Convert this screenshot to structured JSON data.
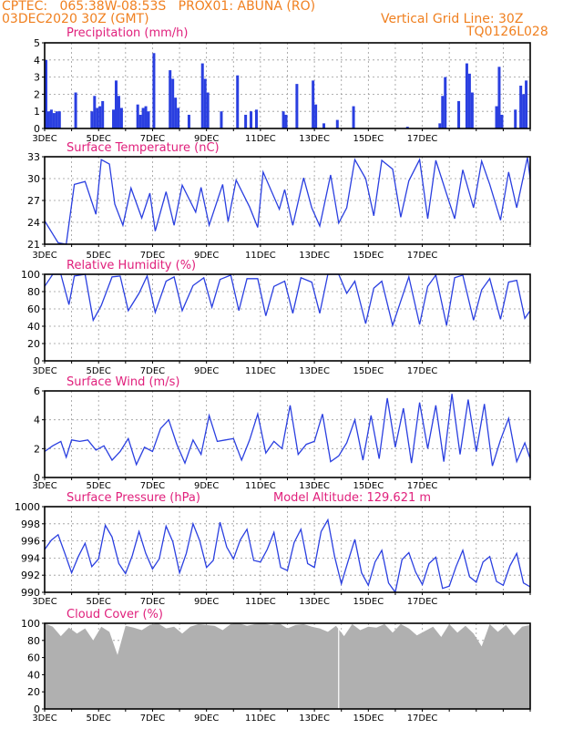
{
  "header": {
    "line1": "CPTEC:   065:38W-08:53S   PROX01: ABUNA (RO)",
    "line2": "03DEC2020 30Z (GMT)",
    "grid_line": "Vertical Grid Line: 30Z",
    "code": "TQ0126L028"
  },
  "colors": {
    "series": "#2a3fe0",
    "title": "#e0207c",
    "header": "#f08020",
    "cloud": "#b0b0b0",
    "grid": "#999999"
  },
  "x_tick_labels": [
    "3DEC",
    "5DEC",
    "7DEC",
    "9DEC",
    "11DEC",
    "13DEC",
    "15DEC",
    "17DEC"
  ],
  "chart_data": [
    {
      "type": "bar",
      "title": "Precipitation (mm/h)",
      "ylim": [
        0,
        5
      ],
      "yticks": [
        "0",
        "1",
        "2",
        "3",
        "4",
        "5"
      ],
      "x_days": [
        0.0,
        0.1,
        0.2,
        0.3,
        0.4,
        0.5,
        1.1,
        1.7,
        1.8,
        1.9,
        2.0,
        2.1,
        2.5,
        2.6,
        2.7,
        2.8,
        3.4,
        3.5,
        3.6,
        3.7,
        3.8,
        4.0,
        4.6,
        4.7,
        4.8,
        4.9,
        5.3,
        5.8,
        5.9,
        6.0,
        6.5,
        7.1,
        7.4,
        7.6,
        7.8,
        8.8,
        8.9,
        9.3,
        9.9,
        10.0,
        10.3,
        10.8,
        11.4,
        13.4,
        14.6,
        14.7,
        14.8,
        15.3,
        15.6,
        15.7,
        15.8,
        16.7,
        16.8,
        16.9,
        17.4,
        17.6,
        17.7,
        17.8
      ],
      "values": [
        4.0,
        1.0,
        1.1,
        0.9,
        1.0,
        1.0,
        2.1,
        1.0,
        1.9,
        1.2,
        1.3,
        1.6,
        1.1,
        2.8,
        1.9,
        1.2,
        1.4,
        0.8,
        1.2,
        1.3,
        1.0,
        4.4,
        3.4,
        2.9,
        1.8,
        1.2,
        0.8,
        3.8,
        2.9,
        2.1,
        1.0,
        3.1,
        0.8,
        1.0,
        1.1,
        1.0,
        0.8,
        2.6,
        2.8,
        1.4,
        0.3,
        0.5,
        1.3,
        0.1,
        0.3,
        1.9,
        3.0,
        1.6,
        3.8,
        3.2,
        2.1,
        1.3,
        3.6,
        0.8,
        1.1,
        2.5,
        2.0,
        2.8
      ]
    },
    {
      "type": "line",
      "title": "Surface Temperature (nC)",
      "ylim": [
        21,
        33
      ],
      "yticks": [
        "21",
        "24",
        "27",
        "30",
        "33"
      ],
      "x_days": [
        0.0,
        0.3,
        0.5,
        0.8,
        1.1,
        1.5,
        1.9,
        2.1,
        2.4,
        2.6,
        2.9,
        3.2,
        3.6,
        3.9,
        4.1,
        4.5,
        4.8,
        5.1,
        5.6,
        5.8,
        6.1,
        6.6,
        6.8,
        7.1,
        7.6,
        7.9,
        8.1,
        8.7,
        8.9,
        9.2,
        9.6,
        9.9,
        10.2,
        10.6,
        10.9,
        11.2,
        11.5,
        11.9,
        12.2,
        12.5,
        12.9,
        13.2,
        13.5,
        13.9,
        14.2,
        14.5,
        14.9,
        15.2,
        15.5,
        15.9,
        16.2,
        16.5,
        16.9,
        17.2,
        17.5,
        17.9,
        18.0
      ],
      "values": [
        24.2,
        22.4,
        21.2,
        21.0,
        29.2,
        29.6,
        25.1,
        32.6,
        32.0,
        26.5,
        23.6,
        28.7,
        24.6,
        28.0,
        22.8,
        28.2,
        23.6,
        29.1,
        25.4,
        28.8,
        23.6,
        29.2,
        24.1,
        29.8,
        26.1,
        23.3,
        30.9,
        25.8,
        28.5,
        23.6,
        30.1,
        26.0,
        23.5,
        30.5,
        23.9,
        26.0,
        32.6,
        30.0,
        24.9,
        32.5,
        31.3,
        24.7,
        29.7,
        32.6,
        24.5,
        32.5,
        27.9,
        24.5,
        31.2,
        26.0,
        32.4,
        29.2,
        24.3,
        30.9,
        26.0,
        32.9,
        30.0
      ]
    },
    {
      "type": "line",
      "title": "Relative Humidity (%)",
      "ylim": [
        0,
        100
      ],
      "yticks": [
        "0",
        "20",
        "40",
        "60",
        "80",
        "100"
      ],
      "x_days": [
        0.0,
        0.3,
        0.6,
        0.9,
        1.1,
        1.5,
        1.8,
        2.1,
        2.5,
        2.8,
        3.1,
        3.5,
        3.8,
        4.1,
        4.5,
        4.8,
        5.1,
        5.5,
        5.9,
        6.2,
        6.5,
        6.9,
        7.2,
        7.5,
        7.9,
        8.2,
        8.5,
        8.9,
        9.2,
        9.5,
        9.9,
        10.2,
        10.5,
        10.9,
        11.2,
        11.5,
        11.9,
        12.2,
        12.5,
        12.9,
        13.2,
        13.5,
        13.9,
        14.2,
        14.5,
        14.9,
        15.2,
        15.5,
        15.9,
        16.2,
        16.5,
        16.9,
        17.2,
        17.5,
        17.8,
        18.0
      ],
      "values": [
        86,
        100,
        100,
        65,
        98,
        100,
        47,
        64,
        97,
        98,
        58,
        78,
        98,
        56,
        92,
        97,
        58,
        87,
        96,
        62,
        94,
        99,
        58,
        95,
        95,
        52,
        86,
        92,
        55,
        96,
        91,
        55,
        100,
        100,
        78,
        92,
        43,
        84,
        92,
        41,
        69,
        97,
        42,
        86,
        99,
        41,
        96,
        99,
        47,
        82,
        95,
        48,
        91,
        93,
        49,
        58
      ]
    },
    {
      "type": "line",
      "title": "Surface Wind (m/s)",
      "ylim": [
        0,
        6
      ],
      "yticks": [
        "0",
        "2",
        "4",
        "6"
      ],
      "x_days": [
        0.0,
        0.3,
        0.6,
        0.8,
        1.0,
        1.3,
        1.6,
        1.9,
        2.2,
        2.5,
        2.8,
        3.1,
        3.4,
        3.7,
        4.0,
        4.3,
        4.6,
        4.9,
        5.2,
        5.5,
        5.8,
        6.1,
        6.4,
        6.7,
        7.0,
        7.3,
        7.6,
        7.9,
        8.2,
        8.5,
        8.8,
        9.1,
        9.4,
        9.7,
        10.0,
        10.3,
        10.6,
        10.9,
        11.2,
        11.5,
        11.8,
        12.1,
        12.4,
        12.7,
        13.0,
        13.3,
        13.6,
        13.9,
        14.2,
        14.5,
        14.8,
        15.1,
        15.4,
        15.7,
        16.0,
        16.3,
        16.6,
        16.9,
        17.2,
        17.5,
        17.8,
        18.0
      ],
      "values": [
        1.8,
        2.2,
        2.5,
        1.4,
        2.6,
        2.5,
        2.6,
        1.9,
        2.2,
        1.2,
        1.8,
        2.7,
        0.9,
        2.1,
        1.8,
        3.4,
        4.0,
        2.3,
        1.0,
        2.6,
        1.6,
        4.3,
        2.5,
        2.6,
        2.7,
        1.2,
        2.6,
        4.4,
        1.7,
        2.5,
        2.0,
        5.0,
        1.6,
        2.3,
        2.5,
        4.4,
        1.1,
        1.5,
        2.4,
        4.0,
        1.2,
        4.3,
        1.3,
        5.5,
        2.1,
        4.8,
        1.0,
        5.2,
        2.0,
        5.0,
        1.1,
        5.8,
        1.6,
        5.4,
        1.8,
        5.1,
        0.8,
        2.6,
        4.1,
        1.1,
        2.4,
        1.3
      ]
    },
    {
      "type": "line",
      "title": "Surface Pressure (hPa)",
      "annotation": "Model Altitude: 129.621  m",
      "ylim": [
        989,
        1000
      ],
      "yticks": [
        "990",
        "992",
        "994",
        "996",
        "998",
        "1000"
      ],
      "x_days": [
        0.0,
        0.25,
        0.5,
        0.75,
        1.0,
        1.25,
        1.5,
        1.75,
        2.0,
        2.25,
        2.5,
        2.75,
        3.0,
        3.25,
        3.5,
        3.75,
        4.0,
        4.25,
        4.5,
        4.75,
        5.0,
        5.25,
        5.5,
        5.75,
        6.0,
        6.25,
        6.5,
        6.75,
        7.0,
        7.25,
        7.5,
        7.75,
        8.0,
        8.25,
        8.5,
        8.75,
        9.0,
        9.25,
        9.5,
        9.75,
        10.0,
        10.25,
        10.5,
        10.75,
        11.0,
        11.25,
        11.5,
        11.75,
        12.0,
        12.25,
        12.5,
        12.75,
        13.0,
        13.25,
        13.5,
        13.75,
        14.0,
        14.25,
        14.5,
        14.75,
        15.0,
        15.25,
        15.5,
        15.75,
        16.0,
        16.25,
        16.5,
        16.75,
        17.0,
        17.25,
        17.5,
        17.75,
        18.0
      ],
      "values": [
        994.5,
        995.7,
        996.4,
        994.0,
        991.5,
        993.6,
        995.3,
        992.3,
        993.3,
        997.6,
        996.1,
        992.7,
        991.4,
        993.7,
        996.8,
        994.0,
        992.0,
        993.3,
        997.5,
        995.5,
        991.5,
        994.0,
        997.8,
        995.6,
        992.2,
        993.1,
        998.0,
        994.8,
        993.3,
        995.7,
        997.1,
        993.1,
        992.9,
        994.5,
        996.7,
        992.2,
        991.8,
        995.4,
        997.1,
        992.7,
        992.2,
        996.8,
        998.3,
        993.6,
        990.1,
        993.0,
        995.8,
        991.5,
        989.9,
        992.9,
        994.4,
        990.2,
        988.7,
        993.2,
        994.1,
        991.6,
        990.0,
        992.7,
        993.5,
        989.5,
        989.8,
        992.3,
        994.4,
        991.0,
        990.3,
        992.9,
        993.6,
        990.4,
        989.9,
        992.4,
        994.0,
        990.2,
        989.7
      ]
    },
    {
      "type": "area",
      "title": "Cloud Cover (%)",
      "ylim": [
        0,
        100
      ],
      "yticks": [
        "0",
        "20",
        "40",
        "60",
        "80",
        "100"
      ],
      "x_days": [
        0.0,
        0.3,
        0.6,
        0.9,
        1.2,
        1.5,
        1.8,
        2.1,
        2.4,
        2.7,
        3.0,
        3.3,
        3.6,
        3.9,
        4.2,
        4.5,
        4.8,
        5.1,
        5.4,
        5.7,
        6.0,
        6.3,
        6.6,
        6.9,
        7.2,
        7.5,
        7.8,
        8.1,
        8.4,
        8.7,
        9.0,
        9.3,
        9.6,
        9.9,
        10.2,
        10.5,
        10.8,
        11.1,
        11.4,
        11.7,
        12.0,
        12.3,
        12.6,
        12.9,
        13.2,
        13.5,
        13.8,
        14.1,
        14.4,
        14.7,
        15.0,
        15.3,
        15.6,
        15.9,
        16.2,
        16.5,
        16.8,
        17.1,
        17.4,
        17.7,
        18.0
      ],
      "values": [
        100,
        96,
        85,
        95,
        88,
        94,
        80,
        96,
        90,
        63,
        97,
        95,
        92,
        98,
        100,
        94,
        96,
        88,
        96,
        99,
        98,
        97,
        92,
        99,
        100,
        97,
        99,
        100,
        98,
        100,
        94,
        98,
        99,
        96,
        94,
        90,
        97,
        85,
        99,
        92,
        96,
        95,
        99,
        89,
        99,
        94,
        86,
        91,
        96,
        84,
        99,
        89,
        97,
        88,
        73,
        99,
        90,
        98,
        86,
        96,
        98
      ]
    }
  ]
}
